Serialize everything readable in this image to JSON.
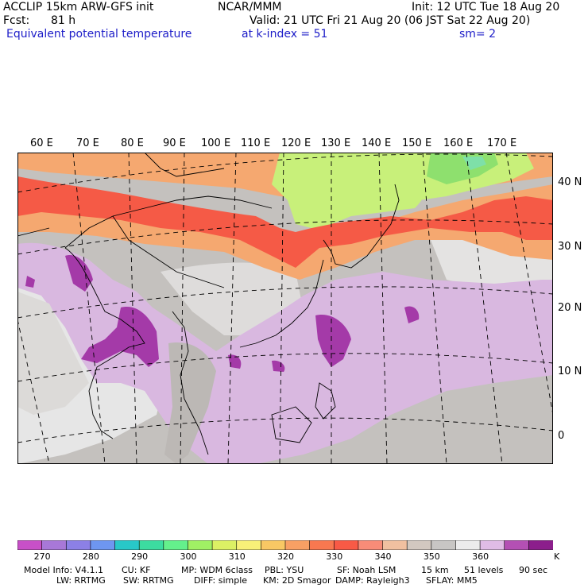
{
  "header": {
    "left_line1": "ACCLIP 15km ARW-GFS init",
    "left_line2_label": "Fcst:",
    "left_line2_value": "81 h",
    "field_name": "Equivalent potential temperature",
    "center_line1": "NCAR/MMM",
    "init": "Init: 12 UTC Tue 18 Aug 20",
    "valid": "Valid: 21 UTC Fri 21 Aug 20 (06 JST Sat 22 Aug 20)",
    "level": "at k-index =  51",
    "smoothing": "sm= 2"
  },
  "map": {
    "longitude_labels": [
      "60 E",
      "70 E",
      "80 E",
      "90 E",
      "100 E",
      "110 E",
      "120 E",
      "130 E",
      "140 E",
      "150 E",
      "160 E",
      "170 E"
    ],
    "latitude_labels": [
      "40 N",
      "30 N",
      "20 N",
      "10 N",
      "0"
    ],
    "colors": {
      "ocean_tropics": "#d9b8e0",
      "gray_mid": "#b4b1ae",
      "gray_light": "#e6e6e6",
      "orange": "#f5a870",
      "red": "#f55a46",
      "yellow_green": "#c8f07a",
      "green": "#8ee06e",
      "purple": "#a43aa8",
      "coast": "#000000",
      "grid": "#000000"
    }
  },
  "colorbar": {
    "colors": [
      "#c850c8",
      "#a878d8",
      "#8c80e6",
      "#6e96f0",
      "#28c8c8",
      "#3cdca0",
      "#64f08c",
      "#a0f064",
      "#dcf064",
      "#f8f078",
      "#f8c864",
      "#f8a064",
      "#f87850",
      "#f85a46",
      "#f88c78",
      "#f0c0a0",
      "#d2c8c0",
      "#c8c6c4",
      "#ececec",
      "#e0bce6",
      "#b450b4",
      "#8c1e8c"
    ],
    "tick_labels": [
      "270",
      "280",
      "290",
      "300",
      "310",
      "320",
      "330",
      "340",
      "350",
      "360"
    ],
    "unit": "K"
  },
  "footer": {
    "line1": [
      "Model Info: V4.1.1",
      "CU: KF",
      "MP: WDM 6class",
      "PBL: YSU",
      "SF: Noah LSM",
      "15 km",
      "51 levels",
      "90 sec"
    ],
    "line2": [
      "LW: RRTMG",
      "SW: RRTMG",
      "DIFF: simple",
      "KM: 2D Smagor",
      "DAMP: Rayleigh3",
      "SFLAY: MM5"
    ]
  }
}
